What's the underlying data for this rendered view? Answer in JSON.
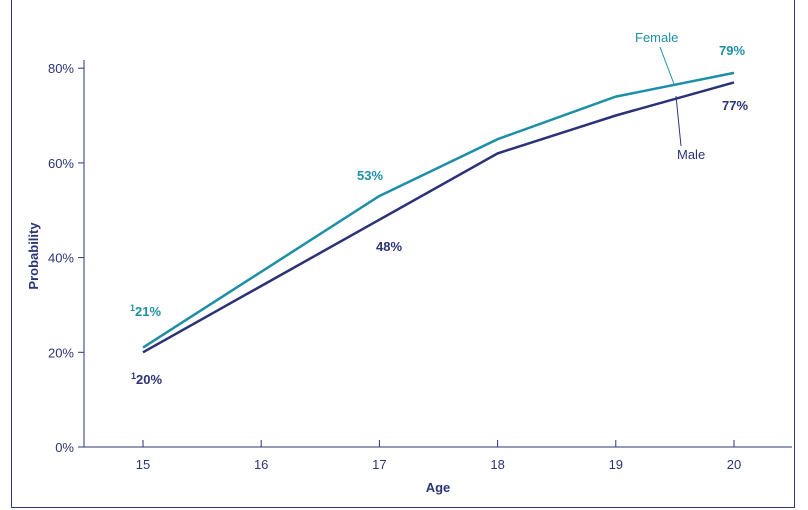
{
  "chart_data": {
    "type": "line",
    "x": [
      15,
      16,
      17,
      18,
      19,
      20
    ],
    "xlabel": "Age",
    "ylabel": "Probability",
    "xlim": [
      14.5,
      20.5
    ],
    "ylim": [
      0,
      85
    ],
    "y_ticks": [
      "0%",
      "20%",
      "40%",
      "60%",
      "80%"
    ],
    "x_ticks": [
      "15",
      "16",
      "17",
      "18",
      "19",
      "20"
    ],
    "series": [
      {
        "name": "Female",
        "color": "#1e8fa6",
        "values": [
          21,
          37,
          53,
          65,
          74,
          79
        ]
      },
      {
        "name": "Male",
        "color": "#2b3278",
        "values": [
          20,
          34,
          48,
          62,
          70,
          77
        ]
      }
    ],
    "annotations": {
      "female_15": "21%",
      "female_15_sup": "1",
      "male_15": "20%",
      "male_15_sup": "1",
      "female_17": "53%",
      "male_17": "48%",
      "female_20": "79%",
      "male_20": "77%"
    },
    "grid": false,
    "legend": "inline labels"
  }
}
